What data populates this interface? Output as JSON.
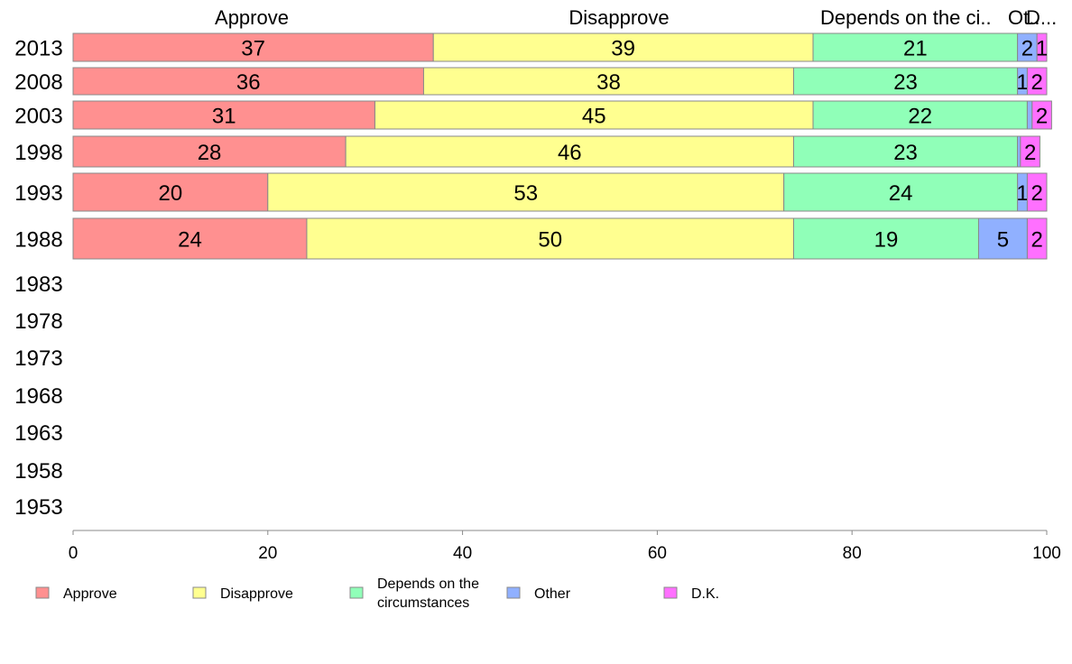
{
  "chart_data": {
    "type": "bar",
    "orientation": "horizontal",
    "stacked": true,
    "categories": [
      "2013",
      "2008",
      "2003",
      "1998",
      "1993",
      "1988",
      "1983",
      "1978",
      "1973",
      "1968",
      "1963",
      "1958",
      "1953"
    ],
    "series": [
      {
        "name": "Approve",
        "color": "#ff9090",
        "values": [
          37,
          36,
          31,
          28,
          20,
          24,
          null,
          null,
          null,
          null,
          null,
          null,
          null
        ]
      },
      {
        "name": "Disapprove",
        "color": "#ffff90",
        "values": [
          39,
          38,
          45,
          46,
          53,
          50,
          null,
          null,
          null,
          null,
          null,
          null,
          null
        ]
      },
      {
        "name": "Depends on the circumstances",
        "color": "#90ffb8",
        "values": [
          21,
          23,
          22,
          23,
          24,
          19,
          null,
          null,
          null,
          null,
          null,
          null,
          null
        ]
      },
      {
        "name": "Other",
        "color": "#90b0ff",
        "values": [
          2,
          1,
          0.5,
          0.3,
          1,
          5,
          null,
          null,
          null,
          null,
          null,
          null,
          null
        ]
      },
      {
        "name": "D.K.",
        "color": "#ff70ff",
        "values": [
          1,
          2,
          2,
          2,
          2,
          2,
          null,
          null,
          null,
          null,
          null,
          null,
          null
        ]
      }
    ],
    "data_labels": [
      [
        "37",
        "39",
        "21",
        "2",
        "1"
      ],
      [
        "36",
        "38",
        "23",
        "1",
        "2"
      ],
      [
        "31",
        "45",
        "22",
        "",
        "2"
      ],
      [
        "28",
        "46",
        "23",
        "",
        "2"
      ],
      [
        "20",
        "53",
        "24",
        "1",
        "2"
      ],
      [
        "24",
        "50",
        "19",
        "5",
        "2"
      ]
    ],
    "column_headers": [
      "Approve",
      "Disapprove",
      "Depends on the ci..",
      "Ot..",
      "D..."
    ],
    "xlim": [
      0,
      100
    ],
    "xticks": [
      0,
      20,
      40,
      60,
      80,
      100
    ],
    "legend": {
      "placement": "bottom",
      "entries": [
        {
          "lines": [
            "Approve"
          ],
          "color": "#ff9090"
        },
        {
          "lines": [
            "Disapprove"
          ],
          "color": "#ffff90"
        },
        {
          "lines": [
            "Depends on the",
            "circumstances"
          ],
          "color": "#90ffb8"
        },
        {
          "lines": [
            "Other"
          ],
          "color": "#90b0ff"
        },
        {
          "lines": [
            "D.K."
          ],
          "color": "#ff70ff"
        }
      ]
    },
    "grid": false
  }
}
